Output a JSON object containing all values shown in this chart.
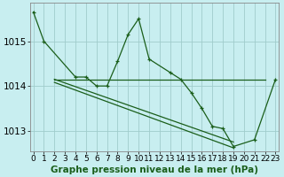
{
  "title": "Graphe pression niveau de la mer (hPa)",
  "background_color": "#c8eef0",
  "grid_color": "#a0cccc",
  "line_color": "#1a5e1a",
  "ylim": [
    1012.55,
    1015.85
  ],
  "yticks": [
    1013,
    1014,
    1015
  ],
  "xlim": [
    -0.3,
    23.3
  ],
  "xlabel_fontsize": 6.5,
  "ylabel_fontsize": 7.5,
  "title_fontsize": 7.5,
  "main_x": [
    0,
    1,
    4,
    5,
    6,
    7,
    8,
    9,
    10,
    11,
    13,
    14,
    15,
    16,
    17,
    18,
    19,
    21,
    23
  ],
  "main_y": [
    1015.65,
    1015.0,
    1014.2,
    1014.2,
    1014.0,
    1014.0,
    1014.55,
    1015.15,
    1015.5,
    1014.6,
    1014.3,
    1014.15,
    1013.85,
    1013.5,
    1013.1,
    1013.05,
    1012.65,
    1012.8,
    1014.15
  ],
  "flat_x": [
    2,
    3,
    4,
    5,
    10,
    11,
    12,
    13,
    14,
    15,
    16,
    17,
    18,
    19,
    20,
    21,
    22
  ],
  "flat_y": [
    1014.15,
    1014.15,
    1014.15,
    1014.15,
    1014.15,
    1014.15,
    1014.15,
    1014.15,
    1014.15,
    1014.15,
    1014.15,
    1014.15,
    1014.15,
    1014.15,
    1014.15,
    1014.15,
    1014.15
  ],
  "trend1_x": [
    2,
    19
  ],
  "trend1_y": [
    1014.15,
    1012.75
  ],
  "trend2_x": [
    2,
    19
  ],
  "trend2_y": [
    1014.08,
    1012.62
  ]
}
